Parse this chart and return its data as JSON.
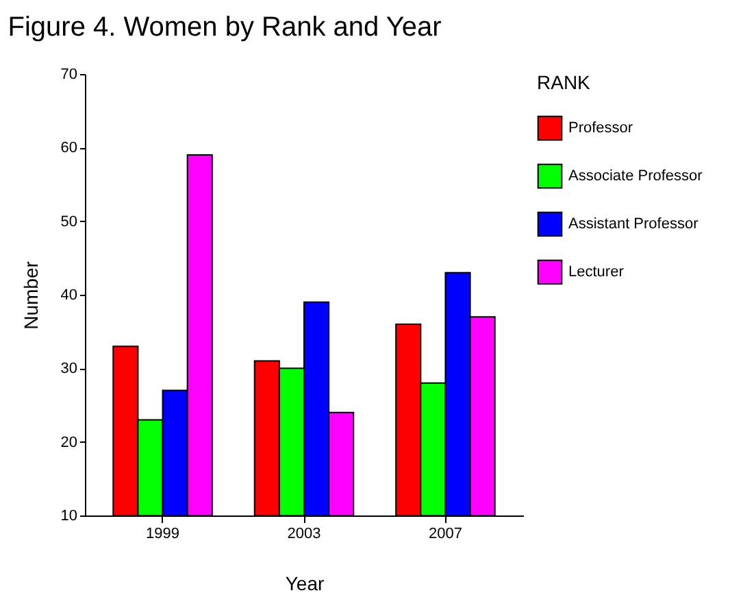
{
  "chart_data": {
    "type": "bar",
    "title": "Figure 4. Women by Rank and Year",
    "xlabel": "Year",
    "ylabel": "Number",
    "legend_title": "RANK",
    "categories": [
      "1999",
      "2003",
      "2007"
    ],
    "series": [
      {
        "name": "Professor",
        "color": "#ff0000",
        "values": [
          33,
          31,
          36
        ]
      },
      {
        "name": "Associate Professor",
        "color": "#00ff00",
        "values": [
          23,
          30,
          28
        ]
      },
      {
        "name": "Assistant Professor",
        "color": "#0000ff",
        "values": [
          27,
          39,
          43
        ]
      },
      {
        "name": "Lecturer",
        "color": "#ff00ff",
        "values": [
          59,
          24,
          37
        ]
      }
    ],
    "ylim": [
      10,
      70
    ],
    "yticks": [
      10,
      20,
      30,
      40,
      50,
      60,
      70
    ],
    "grid": false,
    "legend": "right"
  }
}
